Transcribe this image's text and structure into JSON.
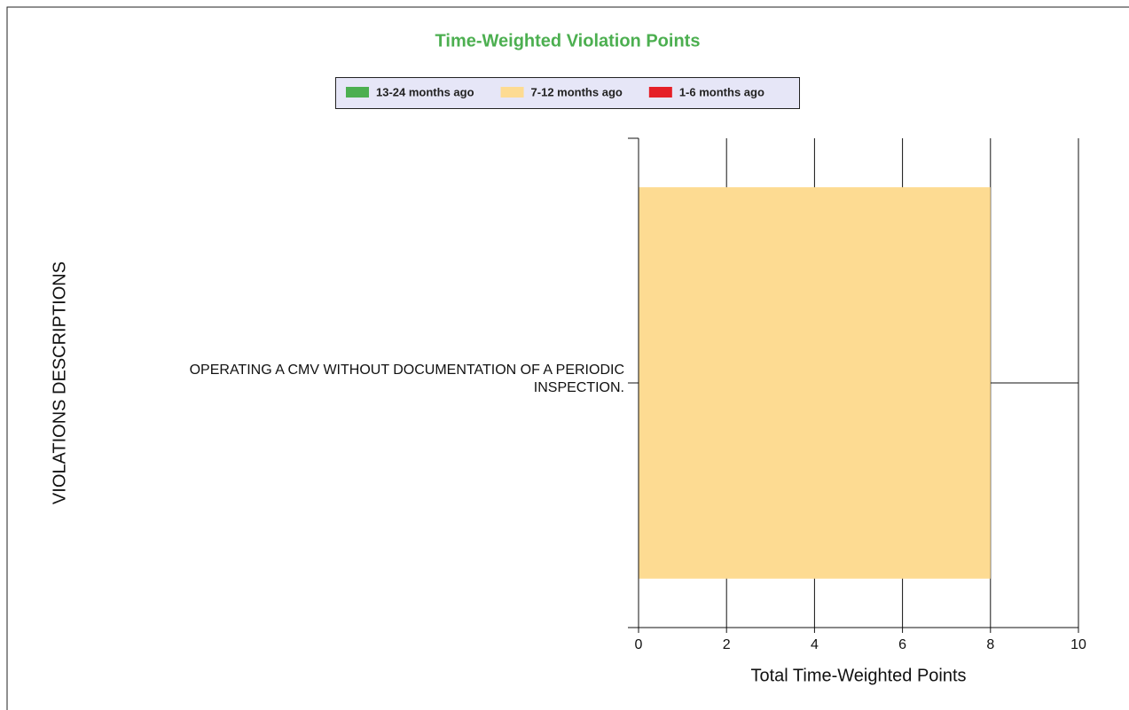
{
  "chart_data": {
    "type": "stacked-bar-horizontal",
    "title": "Time-Weighted Violation Points",
    "x_label": "Total Time-Weighted Points",
    "y_label": "VIOLATIONS DESCRIPTIONS",
    "categories": [
      "OPERATING A CMV WITHOUT DOCUMENTATION OF A PERIODIC INSPECTION."
    ],
    "series": [
      {
        "name": "13-24 months ago",
        "color": "#4caf50",
        "values": [
          0
        ]
      },
      {
        "name": "7-12 months ago",
        "color": "#fddb92",
        "values": [
          8
        ]
      },
      {
        "name": "1-6 months ago",
        "color": "#e51f26",
        "values": [
          0
        ]
      }
    ],
    "xlim": [
      0,
      10
    ],
    "xticks": [
      0,
      2,
      4,
      6,
      8,
      10
    ],
    "grid": true
  }
}
